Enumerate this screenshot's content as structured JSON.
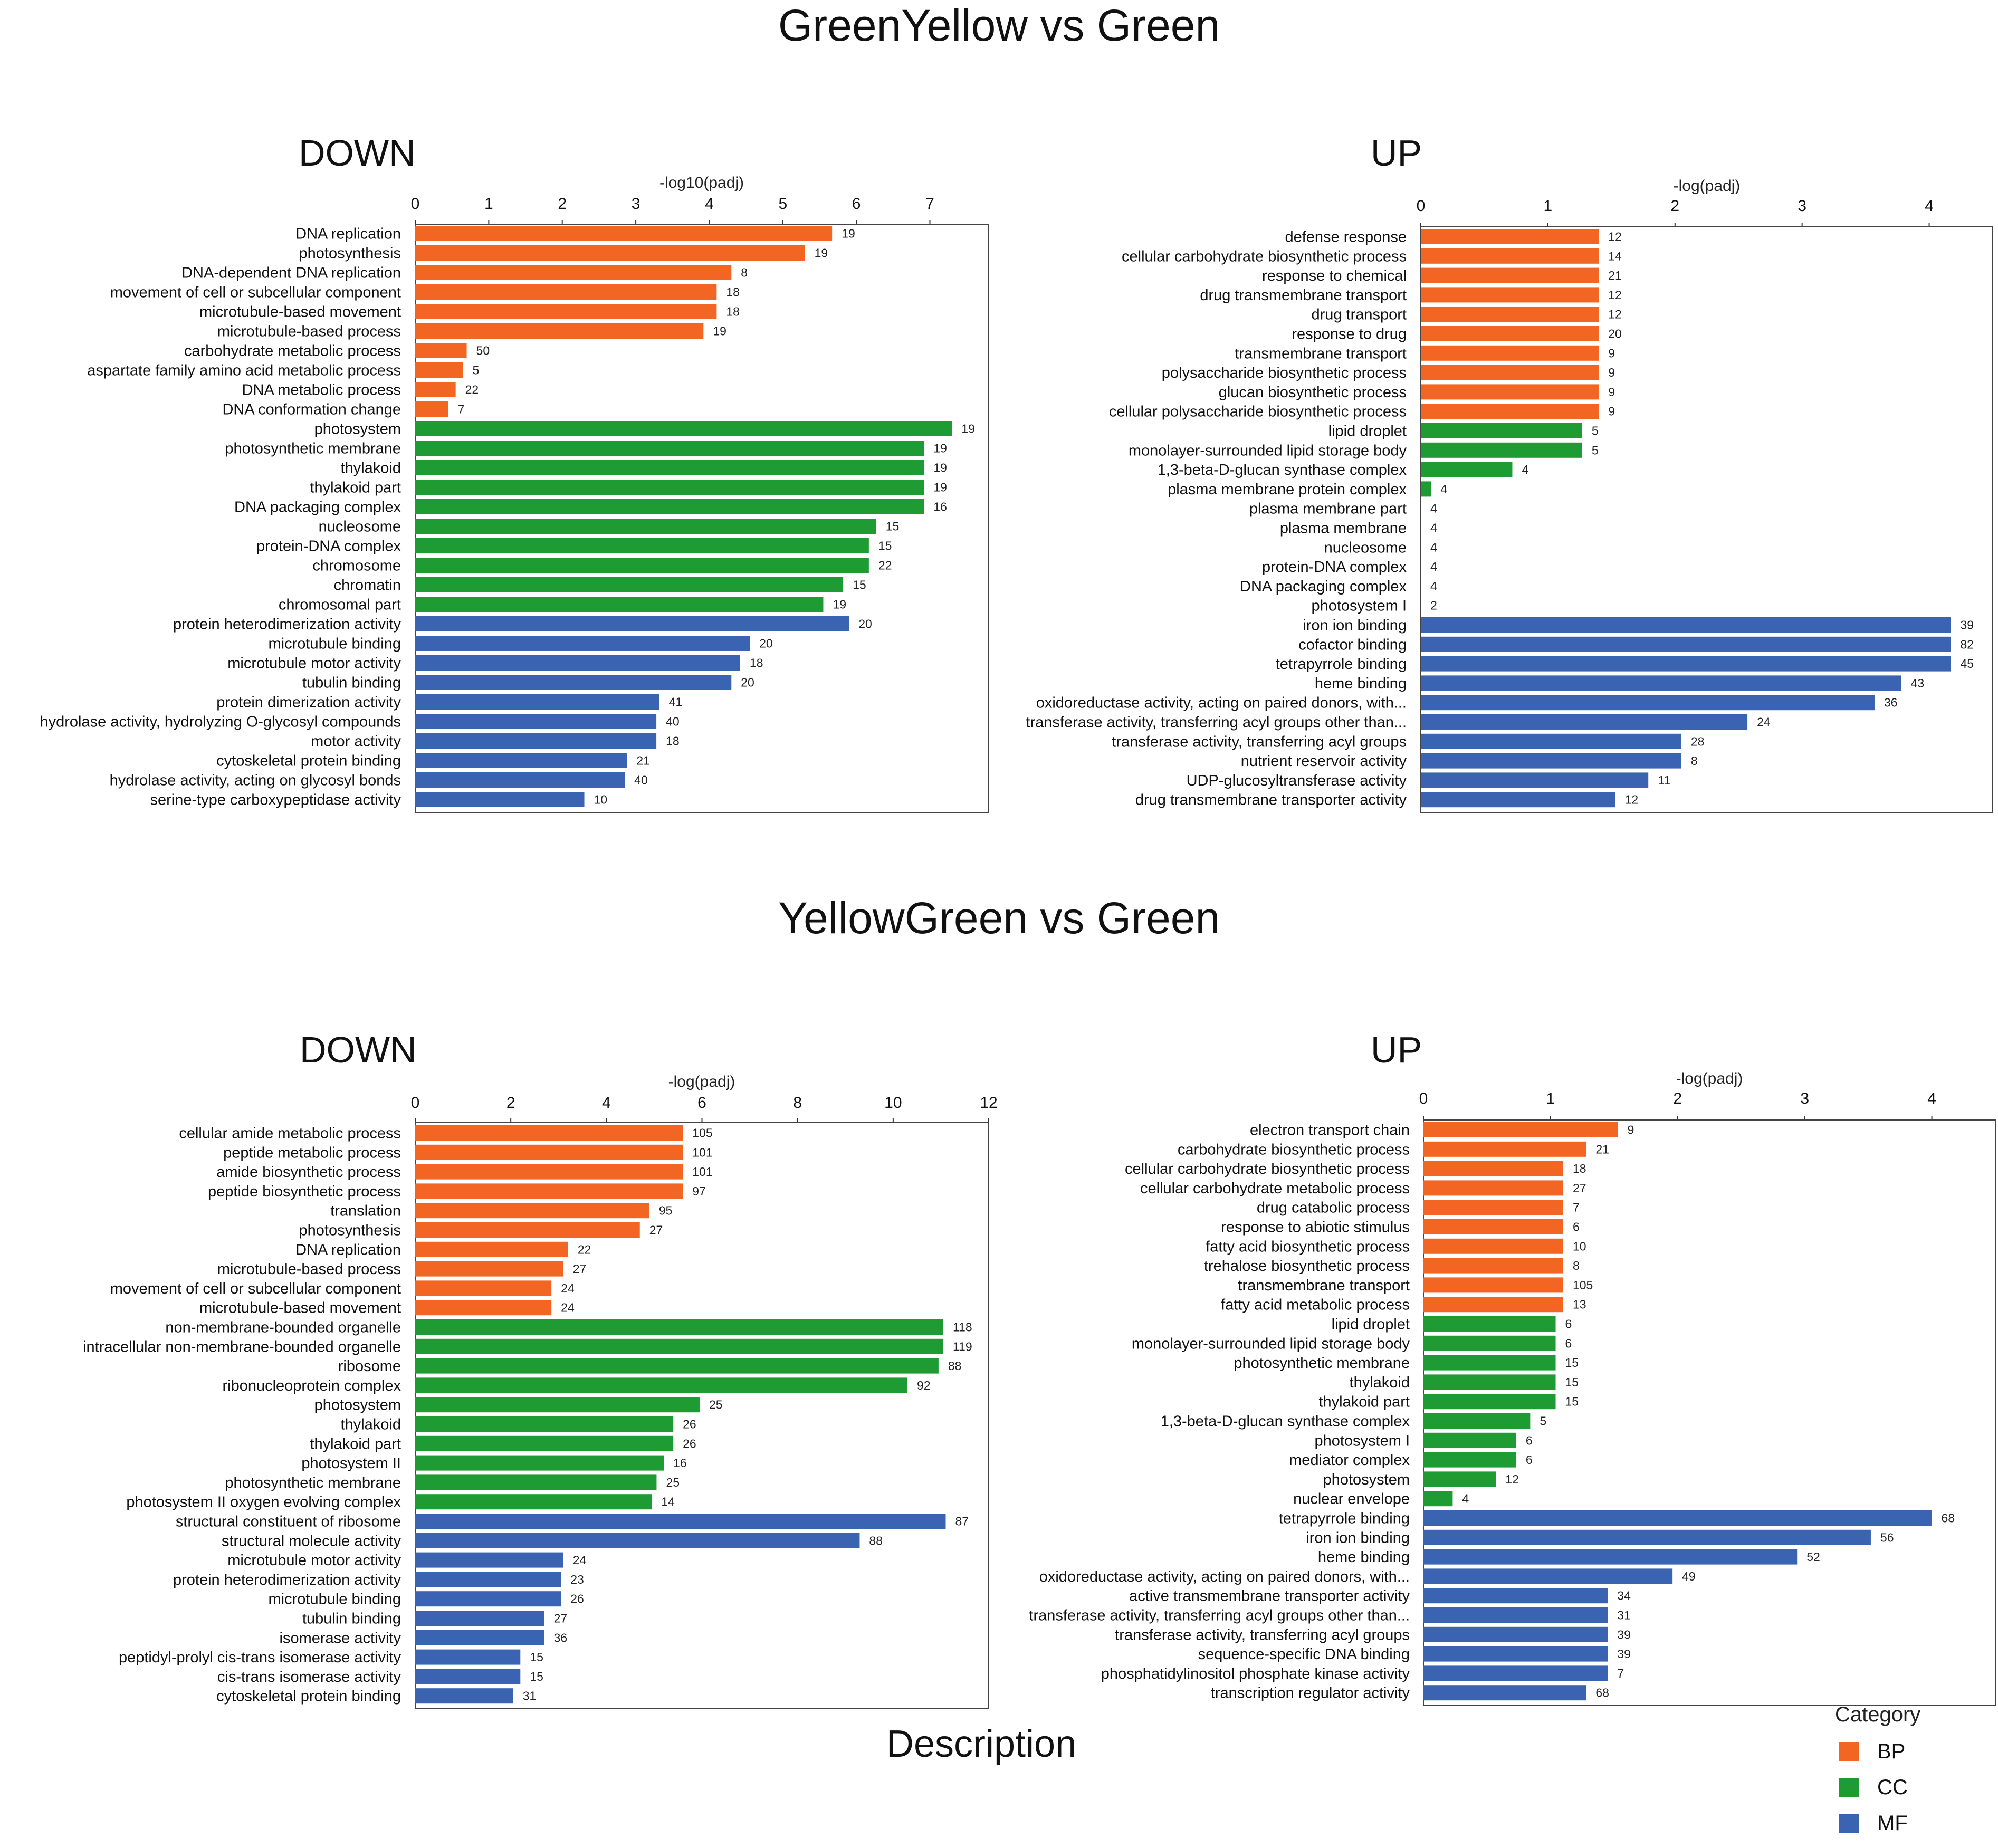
{
  "figure": {
    "description_label": "Description",
    "legend": {
      "title": "Category",
      "items": [
        {
          "label": "BP",
          "color": "#f26522"
        },
        {
          "label": "CC",
          "color": "#1e9b33"
        },
        {
          "label": "MF",
          "color": "#3a63b1"
        }
      ]
    }
  },
  "sections": [
    {
      "title": "GreenYellow vs Green"
    },
    {
      "title": "YellowGreen vs Green"
    }
  ],
  "chart_data": [
    {
      "type": "bar",
      "orientation": "horizontal",
      "section": "GreenYellow vs Green",
      "title": "DOWN",
      "xlabel": "-log10(padj)",
      "xlim": [
        0,
        7.8
      ],
      "xticks": [
        0,
        1,
        2,
        3,
        4,
        5,
        6,
        7
      ],
      "colors": {
        "BP": "#f26522",
        "CC": "#1e9b33",
        "MF": "#3a63b1"
      },
      "bars": [
        {
          "label": "DNA replication",
          "value": 5.67,
          "count": "19",
          "category": "BP"
        },
        {
          "label": "photosynthesis",
          "value": 5.3,
          "count": "19",
          "category": "BP"
        },
        {
          "label": "DNA-dependent DNA replication",
          "value": 4.3,
          "count": "8",
          "category": "BP"
        },
        {
          "label": "movement of cell or subcellular component",
          "value": 4.1,
          "count": "18",
          "category": "BP"
        },
        {
          "label": "microtubule-based movement",
          "value": 4.1,
          "count": "18",
          "category": "BP"
        },
        {
          "label": "microtubule-based process",
          "value": 3.92,
          "count": "19",
          "category": "BP"
        },
        {
          "label": "carbohydrate metabolic process",
          "value": 0.7,
          "count": "50",
          "category": "BP"
        },
        {
          "label": "aspartate family amino acid metabolic process",
          "value": 0.65,
          "count": "5",
          "category": "BP"
        },
        {
          "label": "DNA metabolic process",
          "value": 0.55,
          "count": "22",
          "category": "BP"
        },
        {
          "label": "DNA conformation change",
          "value": 0.45,
          "count": "7",
          "category": "BP"
        },
        {
          "label": "photosystem",
          "value": 7.3,
          "count": "19",
          "category": "CC"
        },
        {
          "label": "photosynthetic membrane",
          "value": 6.92,
          "count": "19",
          "category": "CC"
        },
        {
          "label": "thylakoid",
          "value": 6.92,
          "count": "19",
          "category": "CC"
        },
        {
          "label": "thylakoid part",
          "value": 6.92,
          "count": "19",
          "category": "CC"
        },
        {
          "label": "DNA packaging complex",
          "value": 6.92,
          "count": "16",
          "category": "CC"
        },
        {
          "label": "nucleosome",
          "value": 6.27,
          "count": "15",
          "category": "CC"
        },
        {
          "label": "protein-DNA complex",
          "value": 6.17,
          "count": "15",
          "category": "CC"
        },
        {
          "label": "chromosome",
          "value": 6.17,
          "count": "22",
          "category": "CC"
        },
        {
          "label": "chromatin",
          "value": 5.82,
          "count": "15",
          "category": "CC"
        },
        {
          "label": "chromosomal part",
          "value": 5.55,
          "count": "19",
          "category": "CC"
        },
        {
          "label": "protein heterodimerization activity",
          "value": 5.9,
          "count": "20",
          "category": "MF"
        },
        {
          "label": "microtubule binding",
          "value": 4.55,
          "count": "20",
          "category": "MF"
        },
        {
          "label": "microtubule motor activity",
          "value": 4.42,
          "count": "18",
          "category": "MF"
        },
        {
          "label": "tubulin binding",
          "value": 4.3,
          "count": "20",
          "category": "MF"
        },
        {
          "label": "protein dimerization activity",
          "value": 3.32,
          "count": "41",
          "category": "MF"
        },
        {
          "label": "hydrolase activity, hydrolyzing O-glycosyl compounds",
          "value": 3.28,
          "count": "40",
          "category": "MF"
        },
        {
          "label": "motor activity",
          "value": 3.28,
          "count": "18",
          "category": "MF"
        },
        {
          "label": "cytoskeletal protein binding",
          "value": 2.88,
          "count": "21",
          "category": "MF"
        },
        {
          "label": "hydrolase activity, acting on glycosyl bonds",
          "value": 2.85,
          "count": "40",
          "category": "MF"
        },
        {
          "label": "serine-type carboxypeptidase activity",
          "value": 2.3,
          "count": "10",
          "category": "MF"
        }
      ]
    },
    {
      "type": "bar",
      "orientation": "horizontal",
      "section": "GreenYellow vs Green",
      "title": "UP",
      "xlabel": "-log(padj)",
      "xlim": [
        0,
        4.5
      ],
      "xticks": [
        0,
        1,
        2,
        3,
        4
      ],
      "colors": {
        "BP": "#f26522",
        "CC": "#1e9b33",
        "MF": "#3a63b1"
      },
      "bars": [
        {
          "label": "defense response",
          "value": 1.4,
          "count": "12",
          "category": "BP"
        },
        {
          "label": "cellular carbohydrate biosynthetic process",
          "value": 1.4,
          "count": "14",
          "category": "BP"
        },
        {
          "label": "response to chemical",
          "value": 1.4,
          "count": "21",
          "category": "BP"
        },
        {
          "label": "drug transmembrane transport",
          "value": 1.4,
          "count": "12",
          "category": "BP"
        },
        {
          "label": "drug transport",
          "value": 1.4,
          "count": "12",
          "category": "BP"
        },
        {
          "label": "response to drug",
          "value": 1.4,
          "count": "20",
          "category": "BP"
        },
        {
          "label": "transmembrane transport",
          "value": 1.4,
          "count": "9",
          "category": "BP"
        },
        {
          "label": "polysaccharide biosynthetic process",
          "value": 1.4,
          "count": "9",
          "category": "BP"
        },
        {
          "label": "glucan biosynthetic process",
          "value": 1.4,
          "count": "9",
          "category": "BP"
        },
        {
          "label": "cellular polysaccharide biosynthetic process",
          "value": 1.4,
          "count": "9",
          "category": "BP"
        },
        {
          "label": "lipid droplet",
          "value": 1.27,
          "count": "5",
          "category": "CC"
        },
        {
          "label": "monolayer-surrounded lipid storage body",
          "value": 1.27,
          "count": "5",
          "category": "CC"
        },
        {
          "label": "1,3-beta-D-glucan synthase complex",
          "value": 0.72,
          "count": "4",
          "category": "CC"
        },
        {
          "label": "plasma membrane protein complex",
          "value": 0.08,
          "count": "4",
          "category": "CC"
        },
        {
          "label": "plasma membrane part",
          "value": 0.0,
          "count": "4",
          "category": "CC"
        },
        {
          "label": "plasma membrane",
          "value": 0.0,
          "count": "4",
          "category": "CC"
        },
        {
          "label": "nucleosome",
          "value": 0.0,
          "count": "4",
          "category": "CC"
        },
        {
          "label": "protein-DNA complex",
          "value": 0.0,
          "count": "4",
          "category": "CC"
        },
        {
          "label": "DNA packaging complex",
          "value": 0.0,
          "count": "4",
          "category": "CC"
        },
        {
          "label": "photosystem I",
          "value": 0.0,
          "count": "2",
          "category": "CC"
        },
        {
          "label": "iron ion binding",
          "value": 4.17,
          "count": "39",
          "category": "MF"
        },
        {
          "label": "cofactor binding",
          "value": 4.17,
          "count": "82",
          "category": "MF"
        },
        {
          "label": "tetrapyrrole binding",
          "value": 4.17,
          "count": "45",
          "category": "MF"
        },
        {
          "label": "heme binding",
          "value": 3.78,
          "count": "43",
          "category": "MF"
        },
        {
          "label": "oxidoreductase activity, acting on paired donors, with...",
          "value": 3.57,
          "count": "36",
          "category": "MF"
        },
        {
          "label": "transferase activity, transferring acyl groups other than...",
          "value": 2.57,
          "count": "24",
          "category": "MF"
        },
        {
          "label": "transferase activity, transferring acyl groups",
          "value": 2.05,
          "count": "28",
          "category": "MF"
        },
        {
          "label": "nutrient reservoir activity",
          "value": 2.05,
          "count": "8",
          "category": "MF"
        },
        {
          "label": "UDP-glucosyltransferase activity",
          "value": 1.79,
          "count": "11",
          "category": "MF"
        },
        {
          "label": "drug transmembrane transporter activity",
          "value": 1.53,
          "count": "12",
          "category": "MF"
        }
      ]
    },
    {
      "type": "bar",
      "orientation": "horizontal",
      "section": "YellowGreen vs Green",
      "title": "DOWN",
      "xlabel": "-log(padj)",
      "xlim": [
        0,
        12
      ],
      "xticks": [
        0,
        2,
        4,
        6,
        8,
        10,
        12
      ],
      "colors": {
        "BP": "#f26522",
        "CC": "#1e9b33",
        "MF": "#3a63b1"
      },
      "bars": [
        {
          "label": "cellular amide metabolic process",
          "value": 5.6,
          "count": "105",
          "category": "BP"
        },
        {
          "label": "peptide metabolic process",
          "value": 5.6,
          "count": "101",
          "category": "BP"
        },
        {
          "label": "amide biosynthetic process",
          "value": 5.6,
          "count": "101",
          "category": "BP"
        },
        {
          "label": "peptide biosynthetic process",
          "value": 5.6,
          "count": "97",
          "category": "BP"
        },
        {
          "label": "translation",
          "value": 4.9,
          "count": "95",
          "category": "BP"
        },
        {
          "label": "photosynthesis",
          "value": 4.7,
          "count": "27",
          "category": "BP"
        },
        {
          "label": "DNA replication",
          "value": 3.2,
          "count": "22",
          "category": "BP"
        },
        {
          "label": "microtubule-based process",
          "value": 3.1,
          "count": "27",
          "category": "BP"
        },
        {
          "label": "movement of cell or subcellular component",
          "value": 2.85,
          "count": "24",
          "category": "BP"
        },
        {
          "label": "microtubule-based movement",
          "value": 2.85,
          "count": "24",
          "category": "BP"
        },
        {
          "label": "non-membrane-bounded organelle",
          "value": 11.05,
          "count": "118",
          "category": "CC"
        },
        {
          "label": "intracellular non-membrane-bounded organelle",
          "value": 11.05,
          "count": "119",
          "category": "CC"
        },
        {
          "label": "ribosome",
          "value": 10.95,
          "count": "88",
          "category": "CC"
        },
        {
          "label": "ribonucleoprotein complex",
          "value": 10.3,
          "count": "92",
          "category": "CC"
        },
        {
          "label": "photosystem",
          "value": 5.95,
          "count": "25",
          "category": "CC"
        },
        {
          "label": "thylakoid",
          "value": 5.4,
          "count": "26",
          "category": "CC"
        },
        {
          "label": "thylakoid part",
          "value": 5.4,
          "count": "26",
          "category": "CC"
        },
        {
          "label": "photosystem II",
          "value": 5.2,
          "count": "16",
          "category": "CC"
        },
        {
          "label": "photosynthetic membrane",
          "value": 5.05,
          "count": "25",
          "category": "CC"
        },
        {
          "label": "photosystem II oxygen evolving complex",
          "value": 4.95,
          "count": "14",
          "category": "CC"
        },
        {
          "label": "structural constituent of ribosome",
          "value": 11.1,
          "count": "87",
          "category": "MF"
        },
        {
          "label": "structural molecule activity",
          "value": 9.3,
          "count": "88",
          "category": "MF"
        },
        {
          "label": "microtubule motor activity",
          "value": 3.1,
          "count": "24",
          "category": "MF"
        },
        {
          "label": "protein heterodimerization activity",
          "value": 3.05,
          "count": "23",
          "category": "MF"
        },
        {
          "label": "microtubule binding",
          "value": 3.05,
          "count": "26",
          "category": "MF"
        },
        {
          "label": "tubulin binding",
          "value": 2.7,
          "count": "27",
          "category": "MF"
        },
        {
          "label": "isomerase activity",
          "value": 2.7,
          "count": "36",
          "category": "MF"
        },
        {
          "label": "peptidyl-prolyl cis-trans isomerase activity",
          "value": 2.2,
          "count": "15",
          "category": "MF"
        },
        {
          "label": "cis-trans isomerase activity",
          "value": 2.2,
          "count": "15",
          "category": "MF"
        },
        {
          "label": "cytoskeletal protein binding",
          "value": 2.05,
          "count": "31",
          "category": "MF"
        }
      ]
    },
    {
      "type": "bar",
      "orientation": "horizontal",
      "section": "YellowGreen vs Green",
      "title": "UP",
      "xlabel": "-log(padj)",
      "xlim": [
        0,
        4.5
      ],
      "xticks": [
        0,
        1,
        2,
        3,
        4
      ],
      "colors": {
        "BP": "#f26522",
        "CC": "#1e9b33",
        "MF": "#3a63b1"
      },
      "bars": [
        {
          "label": "electron transport chain",
          "value": 1.53,
          "count": "9",
          "category": "BP"
        },
        {
          "label": "carbohydrate biosynthetic process",
          "value": 1.28,
          "count": "21",
          "category": "BP"
        },
        {
          "label": "cellular carbohydrate biosynthetic process",
          "value": 1.1,
          "count": "18",
          "category": "BP"
        },
        {
          "label": "cellular carbohydrate metabolic process",
          "value": 1.1,
          "count": "27",
          "category": "BP"
        },
        {
          "label": "drug catabolic process",
          "value": 1.1,
          "count": "7",
          "category": "BP"
        },
        {
          "label": "response to abiotic stimulus",
          "value": 1.1,
          "count": "6",
          "category": "BP"
        },
        {
          "label": "fatty acid biosynthetic process",
          "value": 1.1,
          "count": "10",
          "category": "BP"
        },
        {
          "label": "trehalose biosynthetic process",
          "value": 1.1,
          "count": "8",
          "category": "BP"
        },
        {
          "label": "transmembrane transport",
          "value": 1.1,
          "count": "105",
          "category": "BP"
        },
        {
          "label": "fatty acid metabolic process",
          "value": 1.1,
          "count": "13",
          "category": "BP"
        },
        {
          "label": "lipid droplet",
          "value": 1.04,
          "count": "6",
          "category": "CC"
        },
        {
          "label": "monolayer-surrounded lipid storage body",
          "value": 1.04,
          "count": "6",
          "category": "CC"
        },
        {
          "label": "photosynthetic membrane",
          "value": 1.04,
          "count": "15",
          "category": "CC"
        },
        {
          "label": "thylakoid",
          "value": 1.04,
          "count": "15",
          "category": "CC"
        },
        {
          "label": "thylakoid part",
          "value": 1.04,
          "count": "15",
          "category": "CC"
        },
        {
          "label": "1,3-beta-D-glucan synthase complex",
          "value": 0.84,
          "count": "5",
          "category": "CC"
        },
        {
          "label": "photosystem I",
          "value": 0.73,
          "count": "6",
          "category": "CC"
        },
        {
          "label": "mediator complex",
          "value": 0.73,
          "count": "6",
          "category": "CC"
        },
        {
          "label": "photosystem",
          "value": 0.57,
          "count": "12",
          "category": "CC"
        },
        {
          "label": "nuclear envelope",
          "value": 0.23,
          "count": "4",
          "category": "CC"
        },
        {
          "label": "tetrapyrrole binding",
          "value": 4.0,
          "count": "68",
          "category": "MF"
        },
        {
          "label": "iron ion binding",
          "value": 3.52,
          "count": "56",
          "category": "MF"
        },
        {
          "label": "heme binding",
          "value": 2.94,
          "count": "52",
          "category": "MF"
        },
        {
          "label": "oxidoreductase activity, acting on paired donors, with...",
          "value": 1.96,
          "count": "49",
          "category": "MF"
        },
        {
          "label": "active transmembrane transporter activity",
          "value": 1.45,
          "count": "34",
          "category": "MF"
        },
        {
          "label": "transferase activity, transferring acyl groups other than...",
          "value": 1.45,
          "count": "31",
          "category": "MF"
        },
        {
          "label": "transferase activity, transferring acyl groups",
          "value": 1.45,
          "count": "39",
          "category": "MF"
        },
        {
          "label": "sequence-specific DNA binding",
          "value": 1.45,
          "count": "39",
          "category": "MF"
        },
        {
          "label": "phosphatidylinositol phosphate kinase activity",
          "value": 1.45,
          "count": "7",
          "category": "MF"
        },
        {
          "label": "transcription regulator activity",
          "value": 1.28,
          "count": "68",
          "category": "MF"
        }
      ]
    }
  ]
}
